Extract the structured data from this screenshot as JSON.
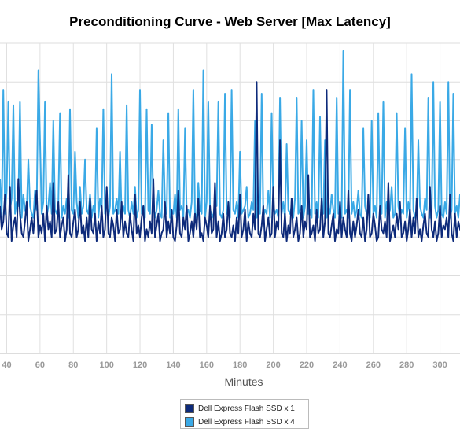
{
  "chart_data": {
    "type": "line",
    "title": "Preconditioning Curve - Web Server [Max Latency]",
    "xlabel": "Minutes",
    "ylabel": "",
    "x_tick_labels": [
      "40",
      "60",
      "80",
      "100",
      "120",
      "140",
      "160",
      "180",
      "200",
      "220",
      "240",
      "260",
      "280",
      "300"
    ],
    "x_tick_values": [
      40,
      60,
      80,
      100,
      120,
      140,
      160,
      180,
      200,
      220,
      240,
      260,
      280,
      300
    ],
    "xlim": [
      36,
      312
    ],
    "ylim": [
      0,
      8
    ],
    "grid": true,
    "legend_position": "bottom",
    "series": [
      {
        "name": "Dell Express Flash SSD x 1",
        "color": "#0d2a7a",
        "x_start": 36,
        "x_step": 1,
        "values": [
          3.8,
          3.2,
          3.4,
          4.1,
          3.1,
          3.0,
          4.3,
          2.9,
          3.3,
          3.5,
          3.0,
          4.5,
          3.6,
          3.1,
          3.0,
          3.4,
          3.9,
          2.9,
          3.2,
          3.5,
          3.1,
          3.7,
          4.2,
          3.0,
          3.3,
          3.1,
          3.6,
          2.9,
          3.8,
          3.2,
          3.4,
          3.0,
          4.4,
          3.1,
          3.2,
          3.9,
          3.0,
          3.3,
          3.5,
          2.9,
          3.2,
          4.6,
          3.1,
          3.0,
          3.4,
          3.7,
          3.0,
          3.2,
          3.9,
          3.1,
          3.3,
          2.9,
          3.5,
          3.0,
          4.0,
          3.2,
          3.1,
          3.6,
          2.9,
          3.4,
          3.1,
          3.8,
          3.0,
          3.2,
          4.3,
          3.1,
          3.0,
          3.5,
          3.3,
          2.9,
          3.7,
          3.1,
          3.2,
          3.9,
          3.0,
          3.4,
          3.1,
          3.0,
          3.6,
          3.2,
          2.9,
          4.1,
          3.1,
          3.3,
          3.0,
          3.5,
          3.8,
          2.9,
          3.2,
          3.0,
          3.4,
          3.1,
          4.5,
          3.0,
          3.3,
          3.6,
          2.9,
          3.1,
          3.2,
          3.9,
          3.0,
          3.4,
          3.1,
          3.7,
          3.0,
          2.9,
          3.3,
          4.2,
          3.1,
          3.0,
          3.5,
          3.2,
          3.8,
          2.9,
          3.1,
          3.4,
          3.0,
          3.6,
          3.2,
          4.0,
          3.0,
          3.1,
          2.9,
          3.5,
          3.3,
          3.0,
          3.8,
          3.1,
          3.2,
          4.4,
          3.0,
          3.4,
          2.9,
          3.1,
          3.6,
          3.0,
          3.2,
          3.9,
          3.1,
          3.0,
          3.3,
          2.9,
          3.5,
          3.1,
          4.1,
          3.0,
          3.2,
          3.7,
          2.9,
          3.4,
          3.1,
          3.0,
          3.6,
          3.2,
          7.0,
          3.1,
          3.0,
          3.3,
          3.8,
          2.9,
          3.2,
          3.5,
          3.0,
          3.1,
          4.3,
          3.0,
          3.4,
          3.2,
          5.5,
          3.1,
          3.0,
          3.6,
          2.9,
          3.3,
          3.1,
          4.0,
          3.0,
          3.2,
          3.5,
          2.9,
          3.1,
          3.8,
          3.0,
          3.4,
          3.2,
          4.6,
          3.0,
          3.1,
          3.3,
          2.9,
          3.7,
          3.1,
          3.2,
          4.0,
          3.0,
          3.4,
          6.8,
          3.1,
          3.0,
          3.3,
          3.6,
          2.9,
          3.2,
          3.1,
          3.9,
          3.0,
          3.5,
          3.2,
          3.0,
          4.2,
          3.1,
          2.9,
          3.4,
          3.0,
          3.3,
          3.7,
          3.1,
          3.0,
          3.5,
          2.9,
          3.2,
          4.1,
          3.0,
          3.1,
          3.6,
          3.3,
          2.9,
          3.0,
          3.8,
          3.2,
          3.1,
          3.4,
          3.0,
          4.4,
          2.9,
          3.1,
          3.3,
          3.0,
          3.6,
          3.2,
          3.9,
          3.0,
          3.1,
          3.4,
          2.9,
          3.2,
          3.7,
          3.0,
          3.5,
          3.1,
          4.0,
          3.0,
          3.2,
          2.9,
          3.3,
          3.6,
          3.1,
          3.0,
          4.3,
          3.2,
          3.0,
          3.4,
          2.9,
          3.1,
          3.8,
          3.0,
          3.3,
          3.2,
          3.5,
          3.0,
          4.1,
          3.1,
          2.9,
          3.6,
          3.0,
          3.4,
          3.2,
          3.1,
          3.9,
          3.0,
          3.3
        ]
      },
      {
        "name": "Dell Express Flash SSD x 4",
        "color": "#3aa9e6",
        "x_start": 36,
        "x_step": 1,
        "values": [
          4.5,
          3.5,
          6.8,
          3.6,
          4.2,
          6.5,
          3.7,
          4.0,
          6.4,
          3.6,
          3.9,
          3.8,
          6.5,
          3.5,
          4.1,
          3.7,
          3.6,
          5.0,
          3.8,
          3.6,
          3.5,
          4.2,
          3.7,
          7.3,
          5.5,
          3.6,
          3.9,
          6.5,
          3.5,
          3.8,
          4.4,
          3.6,
          6.0,
          3.7,
          3.6,
          3.9,
          6.2,
          3.5,
          3.8,
          3.6,
          4.0,
          3.5,
          6.3,
          3.7,
          3.6,
          5.2,
          3.9,
          3.5,
          4.3,
          3.6,
          3.8,
          5.0,
          3.7,
          3.6,
          4.1,
          3.5,
          3.8,
          3.6,
          5.8,
          3.5,
          4.0,
          3.7,
          6.3,
          3.6,
          3.9,
          3.5,
          3.8,
          7.2,
          3.6,
          3.7,
          4.0,
          3.6,
          5.2,
          3.5,
          3.8,
          3.6,
          6.4,
          3.7,
          3.5,
          3.9,
          3.6,
          4.3,
          3.5,
          3.7,
          6.8,
          3.6,
          3.8,
          3.5,
          6.3,
          3.7,
          3.6,
          5.9,
          3.8,
          3.5,
          3.7,
          4.2,
          3.6,
          3.5,
          5.5,
          3.8,
          3.6,
          6.2,
          3.5,
          3.7,
          3.6,
          4.1,
          3.5,
          6.3,
          3.7,
          3.8,
          3.5,
          5.8,
          3.6,
          3.7,
          3.5,
          3.9,
          6.8,
          3.6,
          3.5,
          4.4,
          3.7,
          3.6,
          7.3,
          3.5,
          3.9,
          6.5,
          3.7,
          3.6,
          3.5,
          4.0,
          3.8,
          6.5,
          3.6,
          3.5,
          3.7,
          6.7,
          3.6,
          3.8,
          3.5,
          6.8,
          3.7,
          3.6,
          3.9,
          3.5,
          5.2,
          3.6,
          3.7,
          3.8,
          4.3,
          3.5,
          3.6,
          3.9,
          3.7,
          6.0,
          3.5,
          3.8,
          3.6,
          6.7,
          3.5,
          3.7,
          3.6,
          4.2,
          3.5,
          6.2,
          3.8,
          3.6,
          3.7,
          3.5,
          6.6,
          3.6,
          3.9,
          3.5,
          5.4,
          3.7,
          3.6,
          3.8,
          3.5,
          4.0,
          6.6,
          3.6,
          3.7,
          6.0,
          3.5,
          3.8,
          5.5,
          3.6,
          3.7,
          3.5,
          6.8,
          3.6,
          3.9,
          3.5,
          6.1,
          3.7,
          3.6,
          5.5,
          3.5,
          3.8,
          3.6,
          4.1,
          3.7,
          3.5,
          6.6,
          3.6,
          3.8,
          3.5,
          7.8,
          3.6,
          3.7,
          3.5,
          6.8,
          3.6,
          3.9,
          3.5,
          3.7,
          4.2,
          3.6,
          3.5,
          5.8,
          3.8,
          3.6,
          3.7,
          3.5,
          6.0,
          3.6,
          3.8,
          3.5,
          6.2,
          3.7,
          3.6,
          6.5,
          3.5,
          3.9,
          3.6,
          3.7,
          4.3,
          3.5,
          3.6,
          6.2,
          3.8,
          3.5,
          3.7,
          3.6,
          5.8,
          3.5,
          3.9,
          3.6,
          7.2,
          3.7,
          3.5,
          3.6,
          5.5,
          3.8,
          3.6,
          3.5,
          4.0,
          3.7,
          6.6,
          3.5,
          3.6,
          7.0,
          3.8,
          3.5,
          3.7,
          6.5,
          3.6,
          3.5,
          3.9,
          3.6,
          7.0,
          3.5,
          3.7,
          6.7,
          3.6,
          3.8,
          3.5,
          4.1,
          3.6,
          7.2,
          3.5,
          3.7,
          3.6
        ]
      }
    ]
  }
}
